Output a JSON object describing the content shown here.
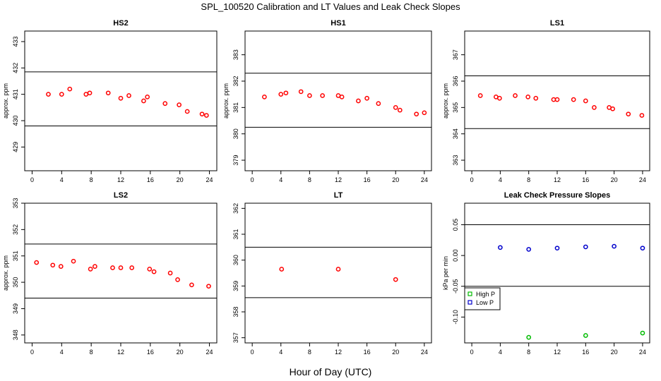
{
  "suptitle": "SPL_100520  Calibration and LT Values and Leak Check Slopes",
  "xlabel": "Hour of Day (UTC)",
  "colors": {
    "red": "#ff0000",
    "blue": "#0000cc",
    "green": "#00bb00",
    "axis": "#000000"
  },
  "chart_data": [
    {
      "type": "scatter",
      "title": "HS2",
      "ylabel": "approx. ppm",
      "xlim": [
        -1,
        25
      ],
      "xticks": [
        0,
        4,
        8,
        12,
        16,
        20,
        24
      ],
      "ylim": [
        428.1,
        433.4
      ],
      "yticks": [
        429,
        430,
        431,
        432,
        433
      ],
      "hlines": [
        431.85,
        429.8
      ],
      "series": [
        {
          "color": "red",
          "x": [
            2.2,
            4.0,
            5.1,
            7.3,
            7.8,
            10.3,
            12.0,
            13.1,
            15.1,
            15.6,
            18.0,
            19.9,
            21.0,
            23.0,
            23.6
          ],
          "y": [
            431.0,
            431.0,
            431.2,
            431.0,
            431.05,
            431.05,
            430.85,
            430.95,
            430.75,
            430.9,
            430.65,
            430.6,
            430.35,
            430.25,
            430.2
          ]
        }
      ]
    },
    {
      "type": "scatter",
      "title": "HS1",
      "ylabel": "approx. ppm",
      "xlim": [
        -1,
        25
      ],
      "xticks": [
        0,
        4,
        8,
        12,
        16,
        20,
        24
      ],
      "ylim": [
        378.6,
        383.9
      ],
      "yticks": [
        379,
        380,
        381,
        382,
        383
      ],
      "hlines": [
        382.3,
        380.25
      ],
      "series": [
        {
          "color": "red",
          "x": [
            1.7,
            4.0,
            4.7,
            6.8,
            8.0,
            9.8,
            12.0,
            12.5,
            14.8,
            16.0,
            17.6,
            20.0,
            20.6,
            22.9,
            24.0
          ],
          "y": [
            381.4,
            381.5,
            381.55,
            381.6,
            381.45,
            381.45,
            381.45,
            381.4,
            381.25,
            381.35,
            381.15,
            381.0,
            380.9,
            380.75,
            380.8
          ]
        }
      ]
    },
    {
      "type": "scatter",
      "title": "LS1",
      "ylabel": "approx. ppm",
      "xlim": [
        -1,
        25
      ],
      "xticks": [
        0,
        4,
        8,
        12,
        16,
        20,
        24
      ],
      "ylim": [
        362.6,
        367.9
      ],
      "yticks": [
        363,
        364,
        365,
        366,
        367
      ],
      "hlines": [
        366.2,
        364.2
      ],
      "series": [
        {
          "color": "red",
          "x": [
            1.2,
            3.4,
            3.9,
            6.1,
            7.9,
            9.0,
            11.5,
            12.0,
            14.3,
            16.0,
            17.2,
            19.3,
            19.8,
            22.0,
            23.9
          ],
          "y": [
            365.45,
            365.4,
            365.35,
            365.45,
            365.4,
            365.35,
            365.3,
            365.3,
            365.3,
            365.25,
            365.0,
            365.0,
            364.95,
            364.75,
            364.7
          ]
        }
      ]
    },
    {
      "type": "scatter",
      "title": "LS2",
      "ylabel": "approx. ppm",
      "xlim": [
        -1,
        25
      ],
      "xticks": [
        0,
        4,
        8,
        12,
        16,
        20,
        24
      ],
      "ylim": [
        347.7,
        353.0
      ],
      "yticks": [
        348,
        349,
        350,
        351,
        352,
        353
      ],
      "hlines": [
        351.45,
        349.4
      ],
      "series": [
        {
          "color": "red",
          "x": [
            0.6,
            2.8,
            3.9,
            5.6,
            7.9,
            8.5,
            10.9,
            12.0,
            13.5,
            15.9,
            16.5,
            18.7,
            19.7,
            21.6,
            23.9
          ],
          "y": [
            350.75,
            350.65,
            350.6,
            350.8,
            350.5,
            350.6,
            350.55,
            350.55,
            350.55,
            350.5,
            350.4,
            350.35,
            350.1,
            349.9,
            349.85
          ]
        }
      ]
    },
    {
      "type": "scatter",
      "title": "LT",
      "ylabel": "",
      "xlim": [
        -1,
        25
      ],
      "xticks": [
        0,
        4,
        8,
        12,
        16,
        20,
        24
      ],
      "ylim": [
        356.8,
        362.2
      ],
      "yticks": [
        357,
        358,
        359,
        360,
        361,
        362
      ],
      "hlines": [
        360.5,
        358.55
      ],
      "series": [
        {
          "color": "red",
          "x": [
            4.1,
            12.0,
            20.0
          ],
          "y": [
            359.65,
            359.65,
            359.25
          ]
        }
      ]
    },
    {
      "type": "scatter",
      "title": "Leak Check Pressure Slopes",
      "ylabel": "kPa per min",
      "xlim": [
        -1,
        25
      ],
      "xticks": [
        0,
        4,
        8,
        12,
        16,
        20,
        24
      ],
      "ylim": [
        -0.142,
        0.085
      ],
      "yticks": [
        -0.1,
        -0.05,
        0.0,
        0.05
      ],
      "yticklabels": [
        "-0.10",
        "-0.05",
        "0.00",
        "0.05"
      ],
      "hlines": [
        0.05,
        -0.05
      ],
      "legend": {
        "position": "left",
        "entries": [
          "High P",
          "Low P"
        ]
      },
      "series": [
        {
          "name": "High P",
          "color": "green",
          "x": [
            8,
            16,
            24
          ],
          "y": [
            -0.133,
            -0.13,
            -0.126
          ]
        },
        {
          "name": "Low P",
          "color": "blue",
          "x": [
            4,
            8,
            12,
            16,
            20,
            24
          ],
          "y": [
            0.013,
            0.01,
            0.012,
            0.014,
            0.015,
            0.012
          ]
        }
      ]
    }
  ]
}
